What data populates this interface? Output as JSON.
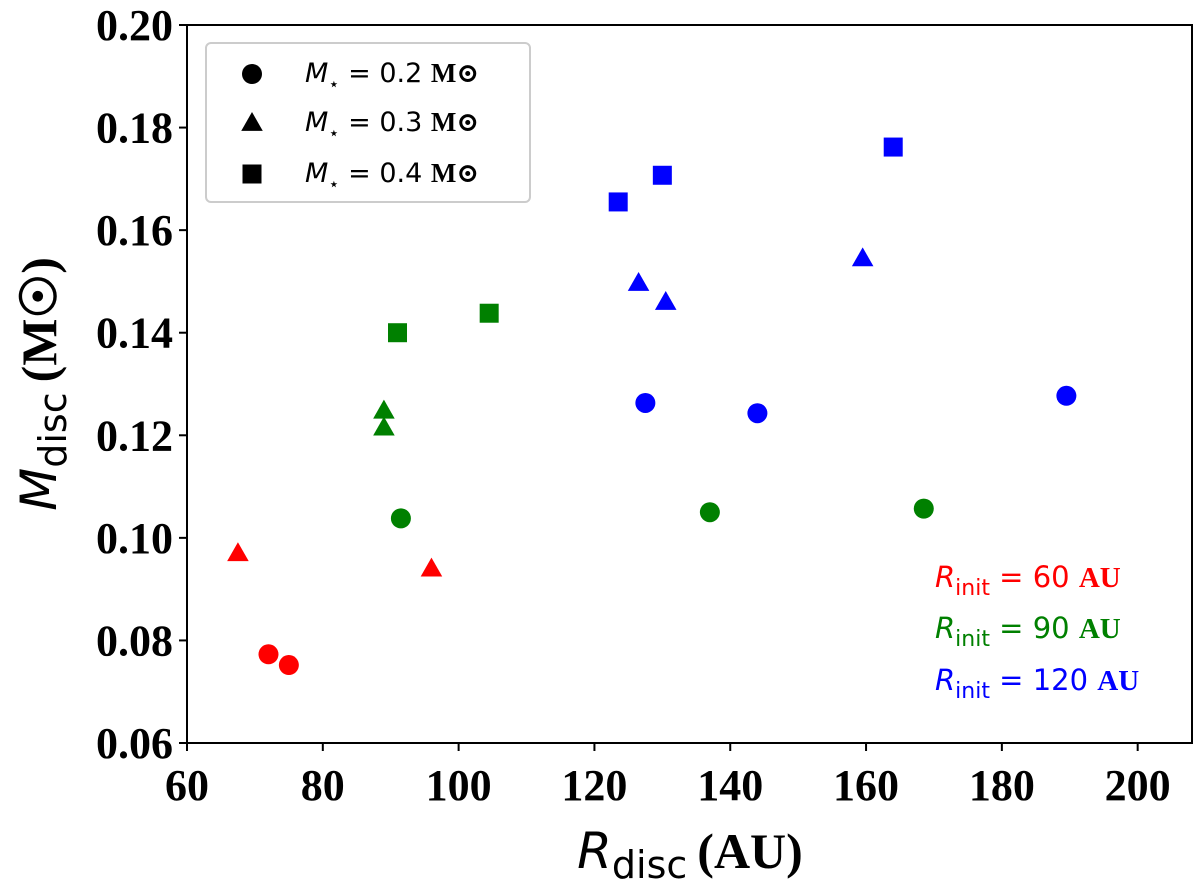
{
  "chart_data": {
    "type": "scatter",
    "xlabel": {
      "symbol": "R",
      "subscript": "disc",
      "unit": "(AU)"
    },
    "ylabel": {
      "symbol": "M",
      "subscript": "disc",
      "unit": "(M☉)"
    },
    "xlim": [
      60,
      208
    ],
    "ylim": [
      0.06,
      0.2
    ],
    "xticks": [
      60,
      80,
      100,
      120,
      140,
      160,
      180,
      200
    ],
    "yticks": [
      0.06,
      0.08,
      0.1,
      0.12,
      0.14,
      0.16,
      0.18,
      0.2
    ],
    "xtick_labels": [
      "60",
      "80",
      "100",
      "120",
      "140",
      "160",
      "180",
      "200"
    ],
    "ytick_labels": [
      "0.06",
      "0.08",
      "0.10",
      "0.12",
      "0.14",
      "0.16",
      "0.18",
      "0.20"
    ],
    "grid": false,
    "legend": {
      "position": "top-left",
      "entries": [
        {
          "marker": "circle",
          "symbol": "M",
          "subscript": "⋆",
          "eq": " = 0.2 ",
          "unit": "M⊙"
        },
        {
          "marker": "triangle",
          "symbol": "M",
          "subscript": "⋆",
          "eq": " = 0.3 ",
          "unit": "M⊙"
        },
        {
          "marker": "square",
          "symbol": "M",
          "subscript": "⋆",
          "eq": " = 0.4 ",
          "unit": "M⊙"
        }
      ]
    },
    "annotations": [
      {
        "symbol": "R",
        "subscript": "init",
        "eq": " = 60 ",
        "unit": "AU",
        "color": "#ff0000"
      },
      {
        "symbol": "R",
        "subscript": "init",
        "eq": " = 90 ",
        "unit": "AU",
        "color": "#008000"
      },
      {
        "symbol": "R",
        "subscript": "init",
        "eq": " = 120 ",
        "unit": "AU",
        "color": "#0000ff"
      }
    ],
    "series": [
      {
        "name": "R_init = 60 AU",
        "color": "#ff0000",
        "points": [
          {
            "x": 72,
            "y": 0.0773,
            "marker": "circle"
          },
          {
            "x": 75,
            "y": 0.0752,
            "marker": "circle"
          },
          {
            "x": 67.5,
            "y": 0.097,
            "marker": "triangle"
          },
          {
            "x": 96,
            "y": 0.094,
            "marker": "triangle"
          }
        ]
      },
      {
        "name": "R_init = 90 AU",
        "color": "#008000",
        "points": [
          {
            "x": 91.5,
            "y": 0.1038,
            "marker": "circle"
          },
          {
            "x": 137,
            "y": 0.105,
            "marker": "circle"
          },
          {
            "x": 168.5,
            "y": 0.1057,
            "marker": "circle"
          },
          {
            "x": 89,
            "y": 0.1248,
            "marker": "triangle"
          },
          {
            "x": 89,
            "y": 0.1215,
            "marker": "triangle"
          },
          {
            "x": 91,
            "y": 0.14,
            "marker": "square"
          },
          {
            "x": 104.5,
            "y": 0.1438,
            "marker": "square"
          }
        ]
      },
      {
        "name": "R_init = 120 AU",
        "color": "#0000ff",
        "points": [
          {
            "x": 127.5,
            "y": 0.1263,
            "marker": "circle"
          },
          {
            "x": 144,
            "y": 0.1243,
            "marker": "circle"
          },
          {
            "x": 189.5,
            "y": 0.1277,
            "marker": "circle"
          },
          {
            "x": 126.5,
            "y": 0.1497,
            "marker": "triangle"
          },
          {
            "x": 130.5,
            "y": 0.146,
            "marker": "triangle"
          },
          {
            "x": 159.5,
            "y": 0.1545,
            "marker": "triangle"
          },
          {
            "x": 123.5,
            "y": 0.1655,
            "marker": "square"
          },
          {
            "x": 130,
            "y": 0.1707,
            "marker": "square"
          },
          {
            "x": 164,
            "y": 0.1762,
            "marker": "square"
          }
        ]
      }
    ]
  }
}
